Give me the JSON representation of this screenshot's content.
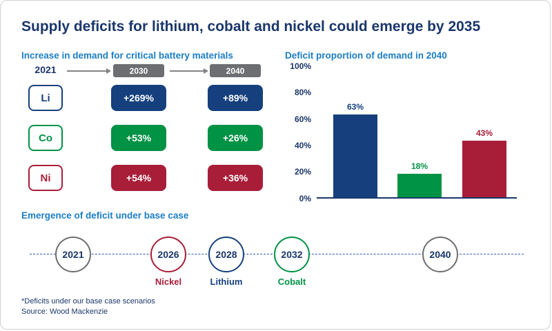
{
  "title": "Supply deficits for lithium, cobalt and nickel could emerge by 2035",
  "colors": {
    "title_navy": "#1a366b",
    "heading_blue": "#1c7ec4",
    "lithium_navy": "#15407d",
    "cobalt_green": "#009245",
    "nickel_red": "#a81e39",
    "chip_gray": "#6d6e71",
    "arrow_gray": "#808285",
    "timeline_line_blue": "#2e59a8"
  },
  "chart_data": [
    {
      "type": "table",
      "title": "Increase in demand for critical battery materials",
      "baseline": "2021",
      "categories": [
        "2030",
        "2040"
      ],
      "series": [
        {
          "name": "Li",
          "material": "Lithium",
          "values": [
            "+269%",
            "+89%"
          ]
        },
        {
          "name": "Co",
          "material": "Cobalt",
          "values": [
            "+53%",
            "+26%"
          ]
        },
        {
          "name": "Ni",
          "material": "Nickel",
          "values": [
            "+54%",
            "+36%"
          ]
        }
      ]
    },
    {
      "type": "bar",
      "title": "Deficit proportion of demand in 2040",
      "categories": [
        "Lithium",
        "Cobalt",
        "Nickel"
      ],
      "values": [
        63,
        18,
        43
      ],
      "data_labels": [
        "63%",
        "18%",
        "43%"
      ],
      "ylim": [
        0,
        100
      ],
      "ytick_labels": [
        "0%",
        "20%",
        "40%",
        "60%",
        "80%",
        "100%"
      ],
      "grid": false,
      "legend": false
    }
  ],
  "timeline": {
    "heading": "Emergence of deficit under base case",
    "items": [
      {
        "year": "2021",
        "label": ""
      },
      {
        "year": "2026",
        "label": "Nickel"
      },
      {
        "year": "2028",
        "label": "Lithium"
      },
      {
        "year": "2032",
        "label": "Cobalt"
      },
      {
        "year": "2040",
        "label": ""
      }
    ]
  },
  "footnotes": [
    "*Deficits under our base case scenarios",
    "Source: Wood Mackenzie"
  ]
}
